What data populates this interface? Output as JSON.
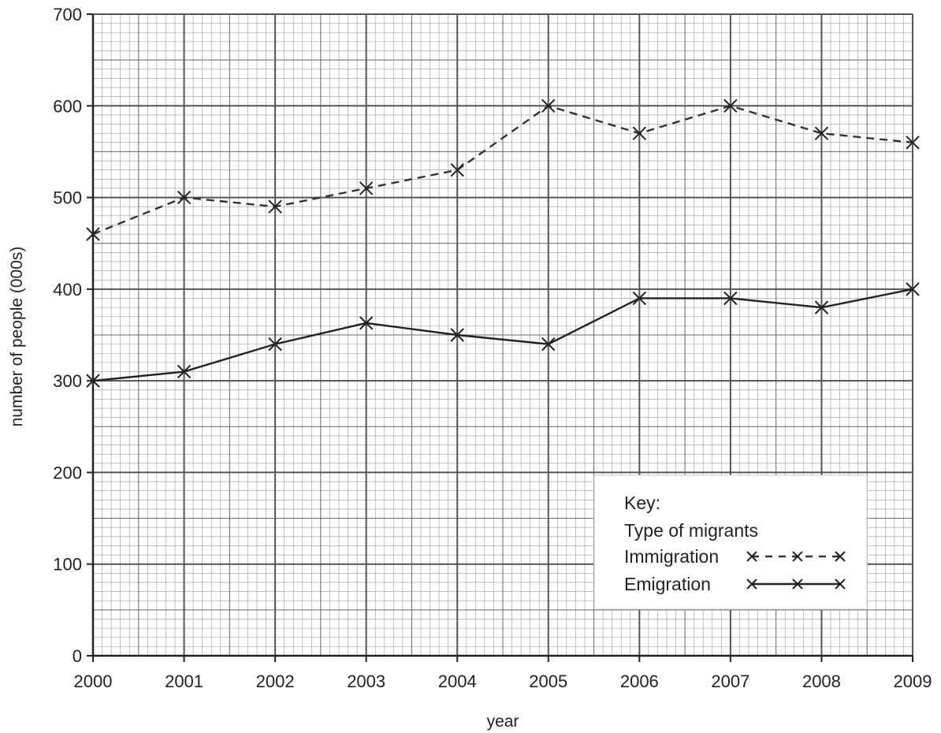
{
  "chart_data": {
    "type": "line",
    "xlabel": "year",
    "ylabel": "number of people (000s)",
    "x": [
      2000,
      2001,
      2002,
      2003,
      2004,
      2005,
      2006,
      2007,
      2008,
      2009
    ],
    "ylim": [
      0,
      700
    ],
    "yticks": [
      0,
      100,
      200,
      300,
      400,
      500,
      600,
      700
    ],
    "grid": true,
    "series": [
      {
        "name": "Immigration",
        "style": "dashed",
        "color": "#333333",
        "values": [
          460,
          500,
          490,
          510,
          530,
          600,
          570,
          600,
          570,
          560
        ]
      },
      {
        "name": "Emigration",
        "style": "solid",
        "color": "#222222",
        "values": [
          300,
          310,
          340,
          363,
          350,
          340,
          390,
          390,
          380,
          400
        ]
      }
    ],
    "legend": {
      "placement": "bottom-right",
      "title": "Key:",
      "subtitle": "Type of migrants"
    }
  }
}
